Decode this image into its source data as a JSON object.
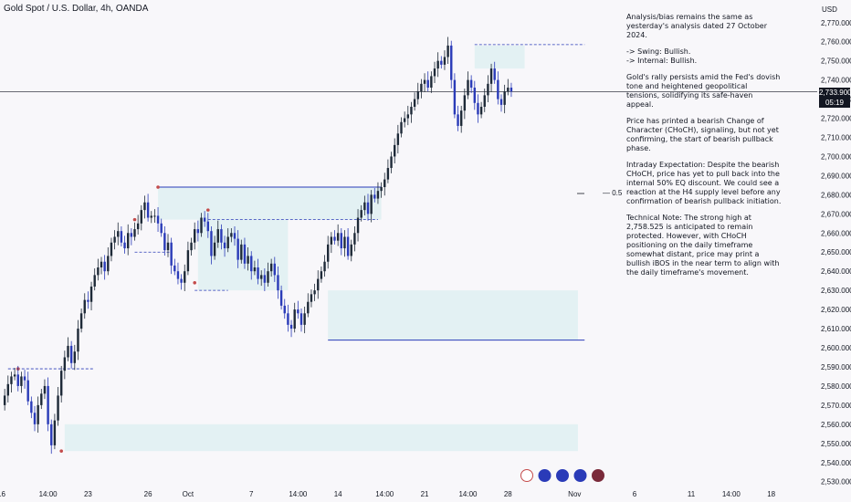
{
  "header": {
    "title": "Gold Spot / U.S. Dollar, 4h, OANDA"
  },
  "axis": {
    "unit": "USD"
  },
  "price_tag": {
    "price": "2,733.900",
    "countdown": "05:19"
  },
  "fib_label": "— 0.5",
  "analysis": [
    "Analysis/bias remains the same as yesterday's analysis dated 27 October 2024.",
    "-> Swing:  Bullish.\n-> Internal:  Bullish.",
    "Gold's rally persists amid the Fed's dovish tone and heightened geopolitical tensions, solidifying its safe-haven appeal.",
    "Price has printed a bearish Change of Character (CHoCH), signaling, but not yet confirming, the start of bearish pullback phase.",
    "Intraday Expectation: Despite the bearish CHoCH, price has yet to pull back into the internal 50% EQ discount. We could see a reaction at the H4 supply level before any confirmation of bearish pullback initiation.",
    "Technical Note: The strong high at 2,758.525 is anticipated to remain protected. However, with CHoCH positioning on the daily timeframe somewhat distant, price may print a bullish iBOS in the near term to align with the daily timeframe's movement."
  ],
  "colors": {
    "up": "#1e2a38",
    "down": "#2a3bb8",
    "zone_fill": "#e3f1f3",
    "zone_line": "#2a3bb8",
    "dashed": "#2a3bb8",
    "swing_dot": "#c44b4b",
    "price_line": "#131722"
  },
  "chart_data": {
    "type": "candlestick",
    "title": "Gold Spot / U.S. Dollar, 4h, OANDA",
    "ylim": [
      2527,
      2778
    ],
    "y_ticks": [
      2530,
      2540,
      2550,
      2560,
      2570,
      2580,
      2590,
      2600,
      2610,
      2620,
      2630,
      2640,
      2650,
      2660,
      2670,
      2680,
      2690,
      2700,
      2710,
      2720,
      2730,
      2740,
      2750,
      2760,
      2770
    ],
    "y_tick_labels": [
      "2,530.000",
      "2,540.000",
      "2,550.000",
      "2,560.000",
      "2,570.000",
      "2,580.000",
      "2,590.000",
      "2,600.000",
      "2,610.000",
      "2,620.000",
      "2,630.000",
      "2,640.000",
      "2,650.000",
      "2,660.000",
      "2,670.000",
      "2,680.000",
      "2,690.000",
      "2,700.000",
      "2,710.000",
      "2,720.000",
      "2,730.000",
      "2,740.000",
      "2,750.000",
      "2,760.000",
      "2,770.000"
    ],
    "x_ticks": [
      {
        "label": "16",
        "bar": 0
      },
      {
        "label": "14:00",
        "bar": 14
      },
      {
        "label": "23",
        "bar": 26
      },
      {
        "label": "26",
        "bar": 44
      },
      {
        "label": "Oct",
        "bar": 56
      },
      {
        "label": "7",
        "bar": 75
      },
      {
        "label": "14:00",
        "bar": 89
      },
      {
        "label": "14",
        "bar": 101
      },
      {
        "label": "14:00",
        "bar": 115
      },
      {
        "label": "21",
        "bar": 127
      },
      {
        "label": "14:00",
        "bar": 140
      },
      {
        "label": "28",
        "bar": 152
      },
      {
        "label": "Nov",
        "bar": 172
      },
      {
        "label": "6",
        "bar": 190
      },
      {
        "label": "11",
        "bar": 207
      },
      {
        "label": "14:00",
        "bar": 219
      },
      {
        "label": "18",
        "bar": 231
      }
    ],
    "bars": [
      2570,
      2575,
      2581,
      2585,
      2586,
      2580,
      2585,
      2583,
      2572,
      2566,
      2560,
      2570,
      2576,
      2580,
      2560,
      2549,
      2562,
      2575,
      2588,
      2595,
      2601,
      2592,
      2598,
      2610,
      2618,
      2625,
      2624,
      2632,
      2638,
      2642,
      2645,
      2640,
      2648,
      2655,
      2658,
      2661,
      2655,
      2652,
      2660,
      2658,
      2662,
      2665,
      2672,
      2676,
      2668,
      2669,
      2669,
      2665,
      2660,
      2651,
      2655,
      2643,
      2640,
      2636,
      2634,
      2640,
      2651,
      2655,
      2662,
      2660,
      2668,
      2666,
      2661,
      2648,
      2655,
      2662,
      2655,
      2652,
      2658,
      2660,
      2657,
      2646,
      2654,
      2644,
      2648,
      2640,
      2642,
      2636,
      2638,
      2634,
      2640,
      2644,
      2638,
      2630,
      2622,
      2618,
      2612,
      2610,
      2620,
      2618,
      2612,
      2618,
      2624,
      2628,
      2630,
      2636,
      2640,
      2645,
      2654,
      2658,
      2656,
      2660,
      2652,
      2658,
      2648,
      2654,
      2660,
      2668,
      2672,
      2676,
      2670,
      2680,
      2678,
      2682,
      2684,
      2688,
      2694,
      2700,
      2706,
      2712,
      2718,
      2720,
      2722,
      2726,
      2730,
      2734,
      2738,
      2740,
      2736,
      2742,
      2746,
      2750,
      2748,
      2752,
      2758,
      2740,
      2722,
      2716,
      2724,
      2732,
      2740,
      2736,
      2728,
      2722,
      2726,
      2732,
      2738,
      2746,
      2740,
      2730,
      2727,
      2734,
      2736,
      2734
    ],
    "zones": [
      {
        "name": "supply-zone-top",
        "top": 2758,
        "bottom": 2746
      },
      {
        "name": "supply-zone-mid",
        "top": 2684,
        "bottom": 2667
      },
      {
        "name": "range-zone",
        "top": 2667,
        "bottom": 2630
      },
      {
        "name": "demand-zone-oct",
        "top": 2630,
        "bottom": 2604
      },
      {
        "name": "demand-zone-sep",
        "top": 2560,
        "bottom": 2546
      }
    ],
    "strong_high": 2758.525,
    "last_price": 2733.9
  }
}
